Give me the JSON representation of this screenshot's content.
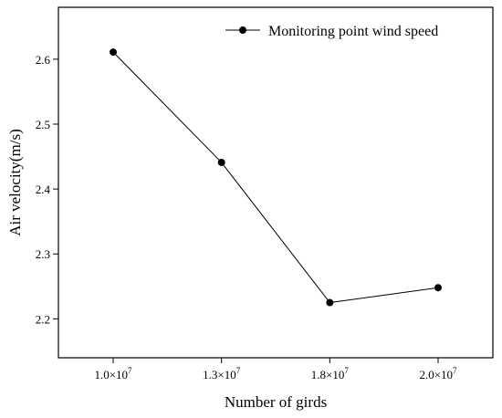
{
  "chart_data": {
    "type": "line",
    "title": "",
    "xlabel": "Number of girds",
    "ylabel": "Air velocity(m/s)",
    "categories": [
      {
        "mant": "1.0×10",
        "exp": "7"
      },
      {
        "mant": "1.3×10",
        "exp": "7"
      },
      {
        "mant": "1.8×10",
        "exp": "7"
      },
      {
        "mant": "2.0×10",
        "exp": "7"
      }
    ],
    "series": [
      {
        "name": "Monitoring point wind speed",
        "values": [
          2.611,
          2.441,
          2.225,
          2.248
        ]
      }
    ],
    "ylim": [
      2.14,
      2.68
    ],
    "yticks": [
      "2.2",
      "2.3",
      "2.4",
      "2.5",
      "2.6"
    ],
    "grid": false,
    "legend": "top-right",
    "colors": {
      "line": "#000000",
      "marker": "#000000"
    }
  }
}
